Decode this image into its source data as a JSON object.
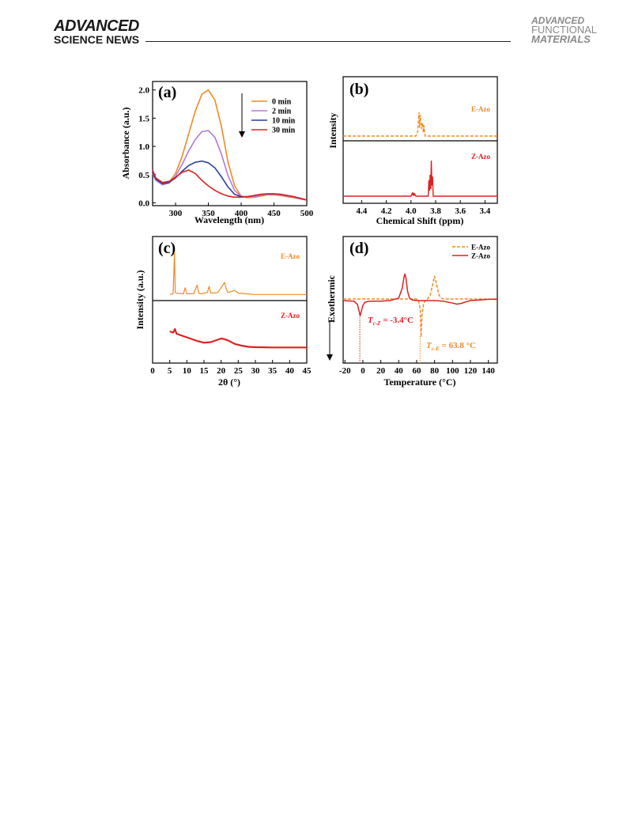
{
  "header": {
    "left_brand": "ADVANCED",
    "left_sub": "SCIENCE NEWS",
    "right_line1": "ADVANCED",
    "right_line2": "FUNCTIONAL",
    "right_line3": "MATERIALS"
  },
  "colors": {
    "orange": "#f08a24",
    "violet": "#b07ad8",
    "blue": "#2b3f9e",
    "red": "#e02020",
    "axis": "#000000"
  },
  "chart_data": [
    {
      "panel_label": "(a)",
      "type": "line",
      "xlabel": "Wavelength (nm)",
      "ylabel": "Absorbance (a.u.)",
      "xlim": [
        265,
        500
      ],
      "ylim": [
        -0.05,
        2.15
      ],
      "xticks": [
        300,
        350,
        400,
        450,
        500
      ],
      "yticks": [
        0.0,
        0.5,
        1.0,
        1.5,
        2.0
      ],
      "ytick_labels": [
        "0.0",
        "0.5",
        "1.0",
        "1.5",
        "2.0"
      ],
      "legend": [
        "0 min",
        "2 min",
        "10 min",
        "30 min"
      ],
      "series": [
        {
          "name": "0 min",
          "color": "#f08a24",
          "x": [
            265,
            270,
            280,
            290,
            300,
            310,
            320,
            330,
            340,
            350,
            360,
            370,
            380,
            390,
            400,
            410,
            420,
            430,
            440,
            450,
            460,
            470,
            480,
            490,
            500
          ],
          "y": [
            0.52,
            0.4,
            0.32,
            0.36,
            0.52,
            0.82,
            1.22,
            1.62,
            1.92,
            2.0,
            1.82,
            1.35,
            0.72,
            0.3,
            0.12,
            0.09,
            0.1,
            0.12,
            0.14,
            0.14,
            0.13,
            0.11,
            0.09,
            0.07,
            0.05
          ]
        },
        {
          "name": "2 min",
          "color": "#b07ad8",
          "x": [
            265,
            270,
            280,
            290,
            300,
            310,
            320,
            330,
            340,
            350,
            360,
            370,
            380,
            390,
            400,
            410,
            420,
            430,
            440,
            450,
            460,
            470,
            480,
            490,
            500
          ],
          "y": [
            0.52,
            0.4,
            0.32,
            0.35,
            0.47,
            0.68,
            0.92,
            1.12,
            1.26,
            1.28,
            1.16,
            0.86,
            0.48,
            0.22,
            0.11,
            0.1,
            0.11,
            0.13,
            0.15,
            0.15,
            0.14,
            0.12,
            0.1,
            0.07,
            0.05
          ]
        },
        {
          "name": "10 min",
          "color": "#2b3f9e",
          "x": [
            265,
            270,
            280,
            290,
            300,
            310,
            320,
            330,
            340,
            350,
            360,
            370,
            380,
            390,
            400,
            410,
            420,
            430,
            440,
            450,
            460,
            470,
            480,
            490,
            500
          ],
          "y": [
            0.54,
            0.42,
            0.34,
            0.36,
            0.44,
            0.56,
            0.66,
            0.72,
            0.74,
            0.71,
            0.62,
            0.46,
            0.28,
            0.15,
            0.11,
            0.11,
            0.13,
            0.15,
            0.16,
            0.16,
            0.15,
            0.13,
            0.11,
            0.08,
            0.05
          ]
        },
        {
          "name": "30 min",
          "color": "#e02020",
          "x": [
            265,
            270,
            280,
            290,
            300,
            310,
            320,
            330,
            340,
            350,
            360,
            370,
            380,
            390,
            400,
            410,
            420,
            430,
            440,
            450,
            460,
            470,
            480,
            490,
            500
          ],
          "y": [
            0.58,
            0.44,
            0.36,
            0.38,
            0.45,
            0.54,
            0.58,
            0.52,
            0.4,
            0.3,
            0.22,
            0.16,
            0.12,
            0.1,
            0.1,
            0.11,
            0.13,
            0.15,
            0.16,
            0.16,
            0.15,
            0.13,
            0.11,
            0.08,
            0.05
          ]
        }
      ]
    },
    {
      "panel_label": "(b)",
      "type": "line",
      "xlabel": "Chemical Shift (ppm)",
      "ylabel": "Intensity",
      "xlim": [
        4.55,
        3.3
      ],
      "xticks": [
        4.4,
        4.2,
        4.0,
        3.8,
        3.6,
        3.4
      ],
      "xtick_labels": [
        "4.4",
        "4.2",
        "4.0",
        "3.8",
        "3.6",
        "3.4"
      ],
      "series": [
        {
          "name": "E-Azo",
          "color": "#f08a24",
          "dash": true,
          "x": [
            4.55,
            3.96,
            3.945,
            3.935,
            3.93,
            3.925,
            3.915,
            3.905,
            3.9,
            3.895,
            3.885,
            3.3
          ],
          "y": [
            0,
            0,
            0.2,
            1.0,
            0.35,
            0.9,
            0.3,
            0.55,
            0.15,
            0.45,
            0,
            0
          ]
        },
        {
          "name": "Z-Azo",
          "color": "#e02020",
          "x": [
            4.55,
            4.0,
            3.99,
            3.985,
            3.98,
            3.975,
            3.97,
            3.96,
            3.86,
            3.855,
            3.85,
            3.845,
            3.84,
            3.835,
            3.83,
            3.825,
            3.82,
            3.3
          ],
          "y": [
            0,
            0,
            0.08,
            0.02,
            0.1,
            0.03,
            0.06,
            0,
            0,
            0.45,
            0.15,
            0.6,
            0.2,
            1.0,
            0.3,
            0.55,
            0,
            0
          ]
        }
      ],
      "labels": [
        "E-Azo",
        "Z-Azo"
      ]
    },
    {
      "panel_label": "(c)",
      "type": "line",
      "xlabel": "2θ (°)",
      "ylabel": "Intensity (a.u.)",
      "xlim": [
        0,
        45
      ],
      "xticks": [
        0,
        5,
        10,
        15,
        20,
        25,
        30,
        35,
        40,
        45
      ],
      "series": [
        {
          "name": "E-Azo",
          "color": "#f08a24",
          "x": [
            5,
            6,
            6.4,
            6.6,
            7,
            9,
            9.5,
            10,
            12,
            13,
            13.5,
            14,
            16,
            16.5,
            17,
            19,
            20,
            21,
            21.5,
            22,
            24,
            25,
            27,
            30,
            35,
            40,
            45
          ],
          "y": [
            0.02,
            0.03,
            0.65,
            0.05,
            0.04,
            0.03,
            0.12,
            0.03,
            0.03,
            0.16,
            0.04,
            0.03,
            0.05,
            0.14,
            0.04,
            0.05,
            0.12,
            0.2,
            0.1,
            0.05,
            0.08,
            0.04,
            0.03,
            0.02,
            0.02,
            0.02,
            0.02
          ]
        },
        {
          "name": "Z-Azo",
          "color": "#e02020",
          "x": [
            5,
            6,
            6.5,
            7,
            9,
            11,
            13,
            15,
            17,
            19,
            20,
            21,
            22,
            24,
            26,
            28,
            30,
            35,
            40,
            45
          ],
          "y": [
            0.28,
            0.26,
            0.32,
            0.24,
            0.2,
            0.16,
            0.12,
            0.09,
            0.1,
            0.14,
            0.16,
            0.15,
            0.13,
            0.07,
            0.04,
            0.02,
            0.015,
            0.01,
            0.01,
            0.01
          ]
        }
      ],
      "labels": [
        "E-Azo",
        "Z-Azo"
      ]
    },
    {
      "panel_label": "(d)",
      "type": "line",
      "xlabel": "Temperature (°C)",
      "ylabel": "Exothermic",
      "xlim": [
        -22,
        150
      ],
      "xticks": [
        -20,
        0,
        20,
        40,
        60,
        80,
        100,
        120,
        140
      ],
      "legend": [
        "E-Azo",
        "Z-Azo"
      ],
      "series": [
        {
          "name": "E-Azo",
          "color": "#f08a24",
          "dash": true,
          "x": [
            -22,
            40,
            60,
            62,
            64,
            65,
            66,
            68,
            70,
            72,
            75,
            78,
            80,
            82,
            85,
            88,
            90,
            100,
            110,
            120,
            140,
            148,
            150
          ],
          "y": [
            0,
            0,
            0,
            -0.1,
            -0.8,
            -3.0,
            -1.2,
            -0.3,
            -0.1,
            0,
            0.3,
            1.2,
            1.8,
            1.2,
            0.3,
            0.05,
            0,
            0,
            0,
            0,
            0,
            -0.05,
            -0.1
          ]
        },
        {
          "name": "Z-Azo",
          "color": "#e02020",
          "x": [
            -22,
            -10,
            -6,
            -4,
            -3,
            -2,
            0,
            2,
            5,
            10,
            20,
            30,
            40,
            44,
            46,
            47,
            48,
            50,
            52,
            55,
            60,
            70,
            80,
            90,
            100,
            105,
            110,
            115,
            120,
            130,
            140,
            150
          ],
          "y": [
            0,
            -0.05,
            -0.3,
            -0.9,
            -1.2,
            -0.9,
            -0.4,
            -0.15,
            -0.08,
            -0.05,
            -0.05,
            0,
            0.2,
            1.0,
            1.9,
            2.1,
            1.8,
            0.7,
            0.2,
            0.05,
            0,
            0,
            0,
            -0.05,
            -0.2,
            -0.28,
            -0.22,
            -0.1,
            0,
            0.05,
            0.1,
            0.12
          ]
        }
      ],
      "annotations": [
        {
          "text_main": "T",
          "text_sub": "c-Z",
          "text_rest": " = -3.4°C",
          "color": "#e02020",
          "x": -3.4
        },
        {
          "text_main": "T",
          "text_sub": "c-E",
          "text_rest": " = 63.8 °C",
          "color": "#f08a24",
          "x": 63.8
        }
      ]
    }
  ]
}
